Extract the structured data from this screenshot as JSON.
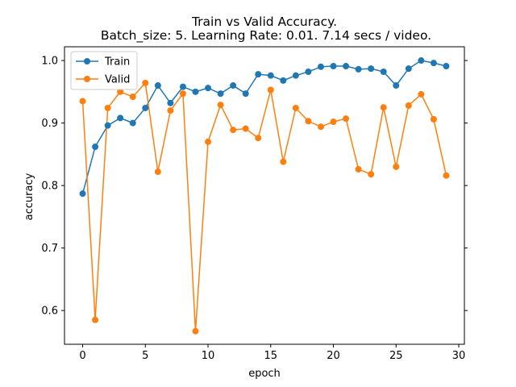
{
  "chart_data": {
    "type": "line",
    "title": "Train vs Valid Accuracy.",
    "subtitle": "Batch_size: 5. Learning Rate: 0.01. 7.14 secs / video.",
    "xlabel": "epoch",
    "ylabel": "accuracy",
    "xlim": [
      -1.45,
      30.45
    ],
    "ylim": [
      0.546,
      1.022
    ],
    "xticks": [
      0,
      5,
      10,
      15,
      20,
      25,
      30
    ],
    "yticks": [
      0.6,
      0.7,
      0.8,
      0.9,
      1.0
    ],
    "xtick_labels": [
      "0",
      "5",
      "10",
      "15",
      "20",
      "25",
      "30"
    ],
    "ytick_labels": [
      "0.6",
      "0.7",
      "0.8",
      "0.9",
      "1.0"
    ],
    "grid": false,
    "legend_position": "top-left",
    "x": [
      0,
      1,
      2,
      3,
      4,
      5,
      6,
      7,
      8,
      9,
      10,
      11,
      12,
      13,
      14,
      15,
      16,
      17,
      18,
      19,
      20,
      21,
      22,
      23,
      24,
      25,
      26,
      27,
      28,
      29
    ],
    "series": [
      {
        "name": "Train",
        "color": "#1f77b4",
        "values": [
          0.787,
          0.862,
          0.896,
          0.908,
          0.9,
          0.924,
          0.96,
          0.932,
          0.958,
          0.95,
          0.956,
          0.947,
          0.96,
          0.947,
          0.978,
          0.976,
          0.968,
          0.976,
          0.982,
          0.99,
          0.991,
          0.991,
          0.986,
          0.987,
          0.982,
          0.96,
          0.987,
          1.0,
          0.996,
          0.991
        ]
      },
      {
        "name": "Valid",
        "color": "#ff7f0e",
        "values": [
          0.935,
          0.585,
          0.924,
          0.95,
          0.942,
          0.964,
          0.822,
          0.92,
          0.947,
          0.567,
          0.87,
          0.929,
          0.889,
          0.891,
          0.876,
          0.953,
          0.838,
          0.924,
          0.903,
          0.894,
          0.902,
          0.907,
          0.826,
          0.818,
          0.925,
          0.83,
          0.928,
          0.946,
          0.906,
          0.816
        ]
      }
    ]
  }
}
